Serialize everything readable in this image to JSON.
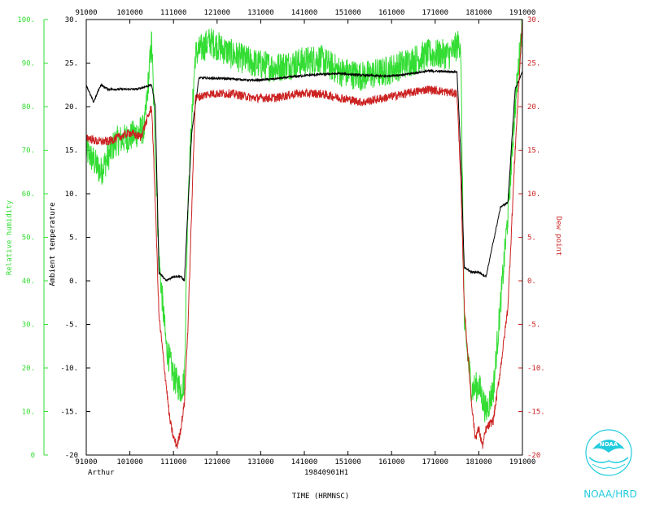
{
  "chart_data": {
    "type": "line",
    "storm": "Arthur",
    "flight_id": "19840901H1",
    "xlabel": "TIME (HRMNSC)",
    "x_ticks": [
      "91000",
      "101000",
      "111000",
      "121000",
      "131000",
      "141000",
      "151000",
      "161000",
      "171000",
      "181000",
      "191000"
    ],
    "axes": [
      {
        "key": "rh",
        "label": "Relative humidity",
        "color": "#33dd33",
        "range": [
          0,
          100
        ],
        "ticks": [
          "0",
          "10.",
          "20.",
          "30.",
          "40.",
          "50.",
          "60.",
          "70.",
          "80.",
          "90.",
          "100."
        ]
      },
      {
        "key": "temp",
        "label": "Ambient temperature",
        "color": "#000000",
        "range": [
          -20,
          30
        ],
        "ticks": [
          "-20",
          "-15.",
          "-10.",
          "-5.",
          "0.",
          "5.",
          "10.",
          "15.",
          "20.",
          "25.",
          "30."
        ]
      },
      {
        "key": "dew",
        "label": "Dew point",
        "color": "#cc2222",
        "range": [
          -20,
          30
        ],
        "ticks": [
          "-20",
          "-15.",
          "-10.",
          "-5.",
          "0.",
          "5.",
          "10.",
          "15.",
          "20.",
          "25.",
          "30."
        ]
      }
    ],
    "x_range_hours": [
      9.1667,
      19.1667
    ],
    "series": [
      {
        "name": "Relative humidity",
        "axis": "rh",
        "color": "#33dd33",
        "x": [
          "09:10:00",
          "09:30:00",
          "09:50:00",
          "10:10:00",
          "10:30:00",
          "10:40:00",
          "10:45:00",
          "10:50:00",
          "11:00:00",
          "11:10:00",
          "11:20:00",
          "11:25:00",
          "11:30:00",
          "11:40:00",
          "12:00:00",
          "12:30:00",
          "13:00:00",
          "13:30:00",
          "14:00:00",
          "14:30:00",
          "15:00:00",
          "15:30:00",
          "16:00:00",
          "16:30:00",
          "17:00:00",
          "17:30:00",
          "17:45:00",
          "17:50:00",
          "18:00:00",
          "18:10:00",
          "18:20:00",
          "18:30:00",
          "18:40:00",
          "18:50:00",
          "19:00:00",
          "19:10:00"
        ],
        "y": [
          70,
          65,
          72,
          73,
          75,
          95,
          70,
          45,
          25,
          18,
          15,
          17,
          60,
          92,
          95,
          92,
          90,
          89,
          90,
          91,
          88,
          87,
          88,
          90,
          92,
          92,
          95,
          30,
          15,
          16,
          10,
          15,
          35,
          55,
          80,
          100
        ]
      },
      {
        "name": "Ambient temperature",
        "axis": "temp",
        "color": "#000000",
        "x": [
          "09:10:00",
          "09:20:00",
          "09:30:00",
          "09:40:00",
          "10:00:00",
          "10:20:00",
          "10:40:00",
          "10:45:00",
          "10:50:00",
          "11:00:00",
          "11:10:00",
          "11:20:00",
          "11:25:00",
          "11:35:00",
          "11:45:00",
          "12:30:00",
          "13:00:00",
          "13:30:00",
          "14:00:00",
          "14:30:00",
          "15:00:00",
          "15:30:00",
          "16:00:00",
          "16:30:00",
          "17:00:00",
          "17:40:00",
          "17:45:00",
          "17:50:00",
          "18:00:00",
          "18:10:00",
          "18:20:00",
          "18:40:00",
          "18:50:00",
          "19:00:00",
          "19:10:00"
        ],
        "y": [
          22.5,
          20.5,
          22.5,
          22,
          22,
          22,
          22.5,
          20,
          1,
          0,
          0.5,
          0.5,
          0,
          17,
          23.3,
          23.2,
          23,
          23.2,
          23.5,
          23.7,
          23.8,
          23.6,
          23.5,
          23.7,
          24.1,
          24,
          15,
          1.5,
          1,
          1,
          0.5,
          8.5,
          9,
          22,
          24
        ]
      },
      {
        "name": "Dew point",
        "axis": "dew",
        "color": "#cc2222",
        "x": [
          "09:10:00",
          "09:25:00",
          "09:40:00",
          "09:55:00",
          "10:10:00",
          "10:25:00",
          "10:40:00",
          "10:45:00",
          "10:50:00",
          "11:00:00",
          "11:05:00",
          "11:10:00",
          "11:15:00",
          "11:20:00",
          "11:25:00",
          "11:30:00",
          "11:40:00",
          "12:00:00",
          "12:30:00",
          "13:00:00",
          "13:30:00",
          "14:00:00",
          "14:30:00",
          "15:00:00",
          "15:30:00",
          "16:00:00",
          "16:30:00",
          "17:00:00",
          "17:40:00",
          "17:45:00",
          "17:50:00",
          "18:00:00",
          "18:05:00",
          "18:10:00",
          "18:15:00",
          "18:20:00",
          "18:30:00",
          "18:40:00",
          "18:50:00",
          "19:00:00",
          "19:10:00"
        ],
        "y": [
          16.5,
          16,
          16,
          16.5,
          17,
          16.5,
          20,
          9,
          -4,
          -12,
          -16,
          -18,
          -19,
          -17,
          -14,
          -5,
          21,
          21.5,
          21.5,
          21,
          21,
          21.5,
          21.5,
          21,
          20.5,
          21,
          21.5,
          22,
          21.5,
          12,
          -3,
          -14,
          -18,
          -17,
          -19,
          -17,
          -16,
          -10,
          -3,
          15,
          30
        ]
      }
    ]
  },
  "branding": {
    "org": "NOAA/HRD",
    "logo_text": "NOAA"
  }
}
